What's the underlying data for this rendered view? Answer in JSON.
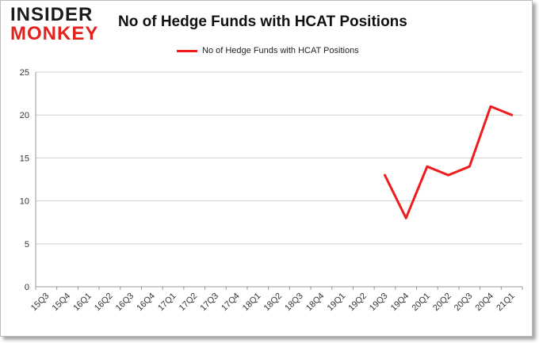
{
  "header": {
    "logo_line1": "INSIDER",
    "logo_line2": "MONKEY",
    "title": "No of Hedge Funds with HCAT Positions"
  },
  "colors": {
    "series": "#ee1c1c",
    "grid": "#cfcfcf",
    "logo_red": "#e0231c"
  },
  "chart_data": {
    "type": "line",
    "title": "No of Hedge Funds with HCAT Positions",
    "xlabel": "",
    "ylabel": "",
    "ylim": [
      0,
      25
    ],
    "yticks": [
      0,
      5,
      10,
      15,
      20,
      25
    ],
    "grid": true,
    "legend_position": "top-center",
    "categories": [
      "15Q3",
      "15Q4",
      "16Q1",
      "16Q2",
      "16Q3",
      "16Q4",
      "17Q1",
      "17Q2",
      "17Q3",
      "17Q4",
      "18Q1",
      "18Q2",
      "18Q3",
      "18Q4",
      "19Q1",
      "19Q2",
      "19Q3",
      "19Q4",
      "20Q1",
      "20Q2",
      "20Q3",
      "20Q4",
      "21Q1"
    ],
    "series": [
      {
        "name": "No of Hedge Funds with HCAT Positions",
        "values": [
          null,
          null,
          null,
          null,
          null,
          null,
          null,
          null,
          null,
          null,
          null,
          null,
          null,
          null,
          null,
          null,
          13,
          8,
          14,
          13,
          14,
          21,
          20
        ]
      }
    ]
  }
}
